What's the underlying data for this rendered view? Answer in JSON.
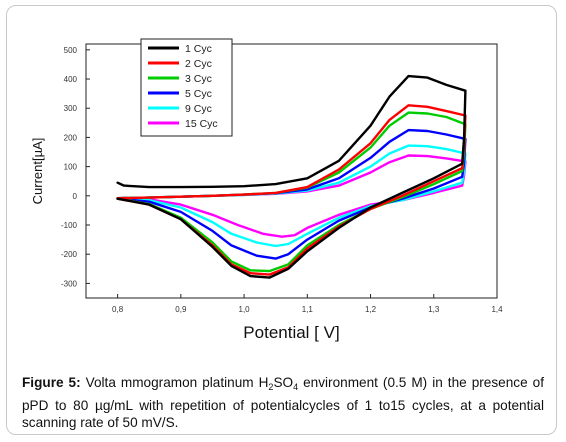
{
  "figure": {
    "caption_label": "Figure 5:",
    "caption_parts": [
      "Volta mmogramon platinum H",
      "2",
      "SO",
      "4",
      " environment (0.5 M) in the presence of pPD to 80 µg/mL with repetition of potentialcycles of 1 to15 cycles, at a potential scanning rate of 50 mV/S."
    ]
  },
  "chart_data": {
    "type": "line",
    "title": "",
    "xlabel": "Potential [ V]",
    "ylabel": "Current[µA]",
    "xlim": [
      0.75,
      1.4
    ],
    "ylim": [
      -350,
      520
    ],
    "xticks": [
      0.8,
      0.9,
      1.0,
      1.1,
      1.2,
      1.3,
      1.4
    ],
    "xtick_labels": [
      "0,8",
      "0,9",
      "1,0",
      "1,1",
      "1,2",
      "1,3",
      "1,4"
    ],
    "yticks": [
      -300,
      -200,
      -100,
      0,
      100,
      200,
      300,
      400,
      500
    ],
    "ytick_labels": [
      "-300",
      "-200",
      "-100",
      "0",
      "100",
      "200",
      "300",
      "400",
      "500"
    ],
    "legend_position": "top-left",
    "series": [
      {
        "name": "1 Cyc",
        "color": "#000000",
        "forward": [
          [
            0.8,
            45
          ],
          [
            0.81,
            35
          ],
          [
            0.85,
            30
          ],
          [
            0.9,
            30
          ],
          [
            0.95,
            31
          ],
          [
            1.0,
            33
          ],
          [
            1.05,
            40
          ],
          [
            1.1,
            60
          ],
          [
            1.15,
            120
          ],
          [
            1.2,
            240
          ],
          [
            1.23,
            340
          ],
          [
            1.26,
            410
          ],
          [
            1.29,
            405
          ],
          [
            1.32,
            380
          ],
          [
            1.35,
            360
          ]
        ],
        "reverse": [
          [
            1.35,
            360
          ],
          [
            1.348,
            200
          ],
          [
            1.345,
            110
          ],
          [
            1.3,
            60
          ],
          [
            1.25,
            10
          ],
          [
            1.2,
            -40
          ],
          [
            1.15,
            -110
          ],
          [
            1.1,
            -190
          ],
          [
            1.07,
            -250
          ],
          [
            1.04,
            -280
          ],
          [
            1.01,
            -275
          ],
          [
            0.98,
            -240
          ],
          [
            0.95,
            -175
          ],
          [
            0.9,
            -80
          ],
          [
            0.85,
            -30
          ],
          [
            0.8,
            -10
          ]
        ]
      },
      {
        "name": "2 Cyc",
        "color": "#ff0000",
        "forward": [
          [
            0.8,
            -8
          ],
          [
            0.85,
            -6
          ],
          [
            0.9,
            -3
          ],
          [
            0.95,
            0
          ],
          [
            1.0,
            4
          ],
          [
            1.05,
            10
          ],
          [
            1.1,
            30
          ],
          [
            1.15,
            90
          ],
          [
            1.2,
            180
          ],
          [
            1.23,
            260
          ],
          [
            1.26,
            310
          ],
          [
            1.29,
            305
          ],
          [
            1.32,
            290
          ],
          [
            1.35,
            275
          ]
        ],
        "reverse": [
          [
            1.35,
            275
          ],
          [
            1.348,
            170
          ],
          [
            1.345,
            95
          ],
          [
            1.3,
            50
          ],
          [
            1.25,
            0
          ],
          [
            1.2,
            -45
          ],
          [
            1.15,
            -105
          ],
          [
            1.1,
            -180
          ],
          [
            1.07,
            -245
          ],
          [
            1.04,
            -270
          ],
          [
            1.01,
            -265
          ],
          [
            0.98,
            -235
          ],
          [
            0.95,
            -170
          ],
          [
            0.9,
            -80
          ],
          [
            0.85,
            -30
          ],
          [
            0.8,
            -10
          ]
        ]
      },
      {
        "name": "3 Cyc",
        "color": "#00cc00",
        "forward": [
          [
            0.8,
            -8
          ],
          [
            0.85,
            -6
          ],
          [
            0.9,
            -3
          ],
          [
            0.95,
            0
          ],
          [
            1.0,
            4
          ],
          [
            1.05,
            10
          ],
          [
            1.1,
            28
          ],
          [
            1.15,
            80
          ],
          [
            1.2,
            165
          ],
          [
            1.23,
            240
          ],
          [
            1.26,
            285
          ],
          [
            1.29,
            282
          ],
          [
            1.32,
            270
          ],
          [
            1.35,
            245
          ]
        ],
        "reverse": [
          [
            1.35,
            245
          ],
          [
            1.348,
            150
          ],
          [
            1.345,
            85
          ],
          [
            1.3,
            40
          ],
          [
            1.25,
            -5
          ],
          [
            1.2,
            -45
          ],
          [
            1.15,
            -100
          ],
          [
            1.1,
            -170
          ],
          [
            1.07,
            -235
          ],
          [
            1.04,
            -258
          ],
          [
            1.01,
            -255
          ],
          [
            0.98,
            -225
          ],
          [
            0.95,
            -160
          ],
          [
            0.9,
            -75
          ],
          [
            0.85,
            -28
          ],
          [
            0.8,
            -10
          ]
        ]
      },
      {
        "name": "5 Cyc",
        "color": "#0000ff",
        "forward": [
          [
            0.8,
            -8
          ],
          [
            0.85,
            -6
          ],
          [
            0.9,
            -3
          ],
          [
            0.95,
            0
          ],
          [
            1.0,
            4
          ],
          [
            1.05,
            9
          ],
          [
            1.1,
            22
          ],
          [
            1.15,
            60
          ],
          [
            1.2,
            130
          ],
          [
            1.23,
            185
          ],
          [
            1.26,
            225
          ],
          [
            1.29,
            222
          ],
          [
            1.32,
            210
          ],
          [
            1.35,
            195
          ]
        ],
        "reverse": [
          [
            1.35,
            195
          ],
          [
            1.348,
            115
          ],
          [
            1.345,
            65
          ],
          [
            1.3,
            25
          ],
          [
            1.25,
            -10
          ],
          [
            1.2,
            -40
          ],
          [
            1.15,
            -85
          ],
          [
            1.1,
            -150
          ],
          [
            1.07,
            -200
          ],
          [
            1.05,
            -215
          ],
          [
            1.02,
            -205
          ],
          [
            0.98,
            -170
          ],
          [
            0.95,
            -120
          ],
          [
            0.9,
            -55
          ],
          [
            0.85,
            -20
          ],
          [
            0.8,
            -10
          ]
        ]
      },
      {
        "name": "9 Cyc",
        "color": "#00ffff",
        "forward": [
          [
            0.8,
            -8
          ],
          [
            0.85,
            -6
          ],
          [
            0.9,
            -3
          ],
          [
            0.95,
            0
          ],
          [
            1.0,
            3
          ],
          [
            1.05,
            8
          ],
          [
            1.1,
            18
          ],
          [
            1.15,
            45
          ],
          [
            1.2,
            100
          ],
          [
            1.23,
            145
          ],
          [
            1.26,
            172
          ],
          [
            1.29,
            170
          ],
          [
            1.32,
            160
          ],
          [
            1.35,
            145
          ]
        ],
        "reverse": [
          [
            1.35,
            145
          ],
          [
            1.348,
            85
          ],
          [
            1.345,
            45
          ],
          [
            1.3,
            15
          ],
          [
            1.25,
            -15
          ],
          [
            1.2,
            -35
          ],
          [
            1.15,
            -75
          ],
          [
            1.1,
            -130
          ],
          [
            1.07,
            -165
          ],
          [
            1.05,
            -172
          ],
          [
            1.02,
            -160
          ],
          [
            0.98,
            -130
          ],
          [
            0.95,
            -90
          ],
          [
            0.9,
            -40
          ],
          [
            0.85,
            -15
          ],
          [
            0.8,
            -10
          ]
        ]
      },
      {
        "name": "15 Cyc",
        "color": "#ff00ff",
        "forward": [
          [
            0.8,
            -8
          ],
          [
            0.85,
            -6
          ],
          [
            0.9,
            -3
          ],
          [
            0.95,
            0
          ],
          [
            1.0,
            3
          ],
          [
            1.05,
            7
          ],
          [
            1.1,
            15
          ],
          [
            1.15,
            35
          ],
          [
            1.2,
            80
          ],
          [
            1.23,
            115
          ],
          [
            1.26,
            138
          ],
          [
            1.29,
            136
          ],
          [
            1.32,
            128
          ],
          [
            1.35,
            118
          ]
        ],
        "reverse": [
          [
            1.35,
            118
          ],
          [
            1.348,
            70
          ],
          [
            1.345,
            35
          ],
          [
            1.3,
            10
          ],
          [
            1.25,
            -15
          ],
          [
            1.2,
            -30
          ],
          [
            1.15,
            -65
          ],
          [
            1.1,
            -110
          ],
          [
            1.08,
            -135
          ],
          [
            1.06,
            -140
          ],
          [
            1.03,
            -130
          ],
          [
            0.99,
            -100
          ],
          [
            0.95,
            -65
          ],
          [
            0.9,
            -30
          ],
          [
            0.85,
            -12
          ],
          [
            0.8,
            -10
          ]
        ]
      }
    ]
  }
}
